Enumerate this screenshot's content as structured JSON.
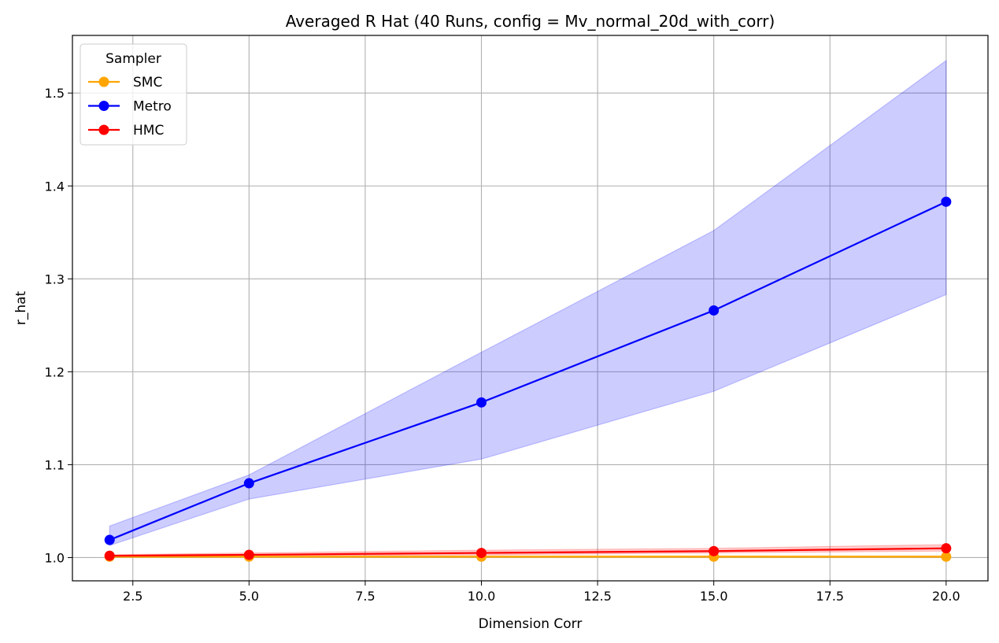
{
  "chart_data": {
    "type": "line",
    "title": "Averaged R Hat (40 Runs, config = Mv_normal_20d_with_corr)",
    "xlabel": "Dimension Corr",
    "ylabel": "r_hat",
    "xlim": [
      1.2,
      20.9
    ],
    "ylim": [
      0.975,
      1.562
    ],
    "xticks": [
      "2.5",
      "5.0",
      "7.5",
      "10.0",
      "12.5",
      "15.0",
      "17.5",
      "20.0"
    ],
    "yticks": [
      "1.0",
      "1.1",
      "1.2",
      "1.3",
      "1.4",
      "1.5"
    ],
    "grid": true,
    "legend": {
      "title": "Sampler",
      "position": "top-left"
    },
    "x": [
      2,
      5,
      10,
      15,
      20
    ],
    "series": [
      {
        "name": "SMC",
        "color": "#ffa500",
        "values": [
          1.001,
          1.001,
          1.001,
          1.001,
          1.001
        ],
        "band_low": [
          1.0,
          1.0,
          1.0,
          1.0,
          1.0
        ],
        "band_high": [
          1.002,
          1.002,
          1.002,
          1.002,
          1.002
        ]
      },
      {
        "name": "Metro",
        "color": "#0000ff",
        "values": [
          1.019,
          1.08,
          1.167,
          1.266,
          1.383
        ],
        "band_low": [
          1.013,
          1.063,
          1.106,
          1.179,
          1.283
        ],
        "band_high": [
          1.034,
          1.089,
          1.221,
          1.352,
          1.535
        ]
      },
      {
        "name": "HMC",
        "color": "#ff0000",
        "values": [
          1.002,
          1.003,
          1.005,
          1.007,
          1.01
        ],
        "band_low": [
          1.001,
          1.002,
          1.003,
          1.005,
          1.007
        ],
        "band_high": [
          1.003,
          1.005,
          1.008,
          1.01,
          1.014
        ]
      }
    ]
  }
}
